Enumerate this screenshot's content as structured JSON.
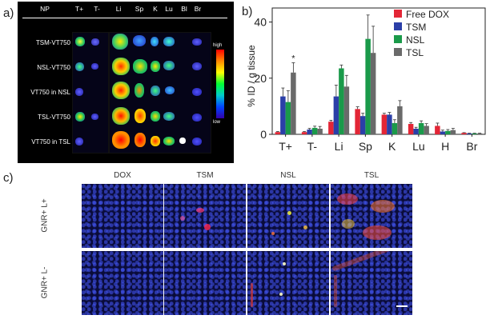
{
  "panel_labels": {
    "a": "a)",
    "b": "b)",
    "c": "c)"
  },
  "panel_a": {
    "header": [
      "NP",
      "T+",
      "T-",
      "Li",
      "Sp",
      "K",
      "Lu",
      "Bl",
      "Br"
    ],
    "rows": [
      "TSM-VT750",
      "NSL-VT750",
      "VT750 in NSL",
      "TSL-VT750",
      "VT750 in TSL"
    ],
    "colorbar": {
      "high": "high",
      "low": "low"
    }
  },
  "chart_data": {
    "type": "bar",
    "categories": [
      "T+",
      "T-",
      "Li",
      "Sp",
      "K",
      "Lu",
      "H",
      "Br"
    ],
    "ylabel": "% ID / g tissue",
    "ylim": [
      0,
      45
    ],
    "yticks": [
      0,
      20,
      40
    ],
    "annotation": "*",
    "legend_position": "top-right",
    "series": [
      {
        "name": "Free DOX",
        "color": "#e32636",
        "values": [
          0.8,
          0.8,
          4.5,
          9,
          7,
          3.7,
          3,
          0.5
        ],
        "errors": [
          0.2,
          0.2,
          0.5,
          0.8,
          0.5,
          0.5,
          1,
          0.1
        ]
      },
      {
        "name": "TSM",
        "color": "#2b3fa8",
        "values": [
          13.5,
          1.7,
          13.5,
          6.5,
          7,
          2,
          1,
          0.3
        ],
        "errors": [
          3,
          0.4,
          4,
          1,
          0.8,
          0.5,
          0.5,
          0.1
        ]
      },
      {
        "name": "NSL",
        "color": "#1a9a4a",
        "values": [
          11.5,
          2.3,
          23.5,
          34,
          4,
          4,
          1.2,
          0.3
        ],
        "errors": [
          4,
          0.6,
          1.2,
          8.5,
          1.2,
          0.8,
          0.5,
          0.1
        ]
      },
      {
        "name": "TSL",
        "color": "#6a6a6a",
        "values": [
          22,
          2,
          17,
          29,
          10,
          3,
          1.5,
          0.3
        ],
        "errors": [
          3.5,
          0.8,
          4,
          9.5,
          2,
          0.8,
          0.6,
          0.1
        ]
      }
    ]
  },
  "panel_c": {
    "columns": [
      "DOX",
      "TSM",
      "NSL",
      "TSL"
    ],
    "rows": [
      "GNR+ L+",
      "GNR+ L-"
    ]
  }
}
